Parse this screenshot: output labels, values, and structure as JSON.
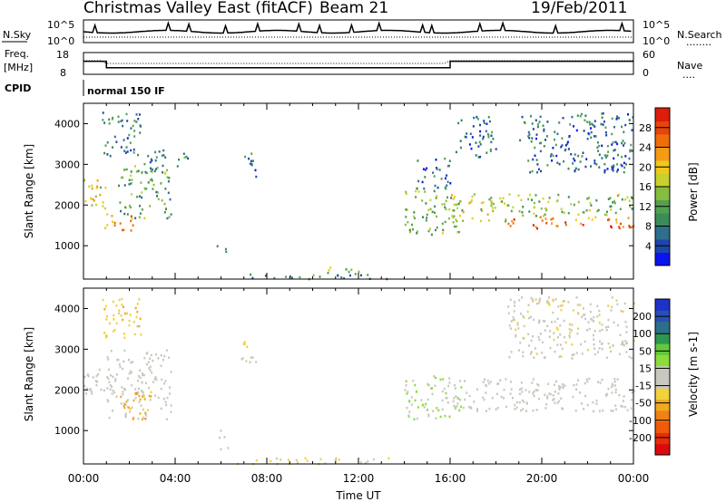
{
  "header": {
    "title": "Christmas Valley East (fitACF)",
    "beam": "Beam 21",
    "date": "19/Feb/2011"
  },
  "top_panel": {
    "left_label": "N.Sky",
    "left_ticks": [
      "10^5",
      "10^0"
    ],
    "right_ticks": [
      "10^5",
      "10^0"
    ],
    "right_label": "N.Search",
    "right_label_line": "........"
  },
  "freq_panel": {
    "left_label_1": "Freq.",
    "left_label_2": "[MHz]",
    "left_ticks": [
      "18",
      "8"
    ],
    "right_ticks": [
      "60",
      "0"
    ],
    "right_label": "Nave",
    "right_label_line": "...."
  },
  "cpid": {
    "label": "CPID",
    "value": "normal 150 IF"
  },
  "power_panel": {
    "ylabel": "Slant Range [km]",
    "yticks": [
      "4000",
      "3000",
      "2000",
      "1000"
    ],
    "colorbar_label": "Power [dB]",
    "colorbar_ticks": [
      "28",
      "24",
      "20",
      "16",
      "12",
      "8",
      "4"
    ],
    "colorbar_colors": [
      "#0a14f0",
      "#1e46aa",
      "#2f6e8c",
      "#3c8c5a",
      "#55a050",
      "#86bd40",
      "#c8d22d",
      "#f0c81e",
      "#f59b14",
      "#f06e0a",
      "#e6460a",
      "#dc1e0a"
    ]
  },
  "velocity_panel": {
    "ylabel": "Slant Range [km]",
    "yticks": [
      "4000",
      "3000",
      "2000",
      "1000"
    ],
    "colorbar_label": "Velocity [m s-1]",
    "colorbar_ticks": [
      "200",
      "100",
      "50",
      "15",
      "-15",
      "-50",
      "-100",
      "-200"
    ],
    "colorbar_colors": [
      "#1e32c8",
      "#2850b4",
      "#2d6e8c",
      "#2d9650",
      "#64c83c",
      "#8cdc3c",
      "#c8c8c0",
      "#c8c8c0",
      "#f0d23c",
      "#f0aa1e",
      "#f08214",
      "#f05a0a",
      "#e62d0a",
      "#dc0a0a"
    ]
  },
  "xaxis": {
    "label": "Time UT",
    "ticks": [
      "00:00",
      "04:00",
      "08:00",
      "12:00",
      "16:00",
      "20:00",
      "00:00"
    ]
  },
  "chart_data": {
    "type": "heatmap",
    "title": "Christmas Valley East (fitACF)",
    "xlabel": "Time UT",
    "ylabel": "Slant Range [km]",
    "xlim": [
      0,
      24
    ],
    "ylim": [
      180,
      4500
    ],
    "ytick_values": [
      1000,
      2000,
      3000,
      4000
    ],
    "freq_steps": [
      {
        "t0": 0.0,
        "t1": 1.0,
        "mhz": 14
      },
      {
        "t0": 1.0,
        "t1": 16.0,
        "mhz": 11
      },
      {
        "t0": 16.0,
        "t1": 24.0,
        "mhz": 14
      }
    ],
    "power_regions": [
      {
        "t0": 0.0,
        "t1": 1.0,
        "r0": 1900,
        "r1": 2700,
        "db": 18
      },
      {
        "t0": 0.9,
        "t1": 2.2,
        "r0": 1350,
        "r1": 1800,
        "db": 22
      },
      {
        "t0": 1.5,
        "t1": 3.8,
        "r0": 1700,
        "r1": 3000,
        "db": 12
      },
      {
        "t0": 0.8,
        "t1": 2.5,
        "r0": 3200,
        "r1": 4300,
        "db": 9
      },
      {
        "t0": 2.5,
        "t1": 3.6,
        "r0": 2800,
        "r1": 3500,
        "db": 10
      },
      {
        "t0": 4.0,
        "t1": 4.6,
        "r0": 2900,
        "r1": 3300,
        "db": 10
      },
      {
        "t0": 6.8,
        "t1": 7.5,
        "r0": 2700,
        "r1": 3300,
        "db": 9
      },
      {
        "t0": 5.8,
        "t1": 6.2,
        "r0": 800,
        "r1": 1050,
        "db": 8
      },
      {
        "t0": 7.0,
        "t1": 13.5,
        "r0": 200,
        "r1": 320,
        "db": 10
      },
      {
        "t0": 10.5,
        "t1": 12.0,
        "r0": 300,
        "r1": 500,
        "db": 14
      },
      {
        "t0": 14.0,
        "t1": 16.5,
        "r0": 1300,
        "r1": 2400,
        "db": 14
      },
      {
        "t0": 14.5,
        "t1": 16.0,
        "r0": 2400,
        "r1": 3200,
        "db": 8
      },
      {
        "t0": 16.0,
        "t1": 18.5,
        "r0": 1600,
        "r1": 2300,
        "db": 17
      },
      {
        "t0": 16.2,
        "t1": 18.0,
        "r0": 3200,
        "r1": 4200,
        "db": 8
      },
      {
        "t0": 18.5,
        "t1": 24.0,
        "r0": 1450,
        "r1": 1750,
        "db": 24
      },
      {
        "t0": 18.5,
        "t1": 24.0,
        "r0": 1750,
        "r1": 2300,
        "db": 14
      },
      {
        "t0": 19.0,
        "t1": 24.0,
        "r0": 2800,
        "r1": 4300,
        "db": 8
      }
    ],
    "velocity_regions": [
      {
        "t0": 0.0,
        "t1": 1.0,
        "r0": 1900,
        "r1": 2700,
        "v": 0
      },
      {
        "t0": 0.9,
        "t1": 3.8,
        "r0": 1300,
        "r1": 3000,
        "v": 0
      },
      {
        "t0": 1.5,
        "t1": 3.0,
        "r0": 1300,
        "r1": 2000,
        "v": -80
      },
      {
        "t0": 0.8,
        "t1": 2.5,
        "r0": 3300,
        "r1": 4300,
        "v": -50
      },
      {
        "t0": 6.8,
        "t1": 7.5,
        "r0": 2700,
        "r1": 3300,
        "v": -40
      },
      {
        "t0": 5.8,
        "t1": 6.2,
        "r0": 800,
        "r1": 1050,
        "v": 0
      },
      {
        "t0": 5.9,
        "t1": 6.5,
        "r0": 500,
        "r1": 650,
        "v": 40
      },
      {
        "t0": 6.5,
        "t1": 13.5,
        "r0": 200,
        "r1": 350,
        "v": -40
      },
      {
        "t0": 14.0,
        "t1": 16.5,
        "r0": 1300,
        "r1": 2400,
        "v": 30
      },
      {
        "t0": 16.0,
        "t1": 24.0,
        "r0": 1500,
        "r1": 2300,
        "v": 0
      },
      {
        "t0": 18.5,
        "t1": 24.0,
        "r0": 2800,
        "r1": 4300,
        "v": -20
      }
    ]
  }
}
